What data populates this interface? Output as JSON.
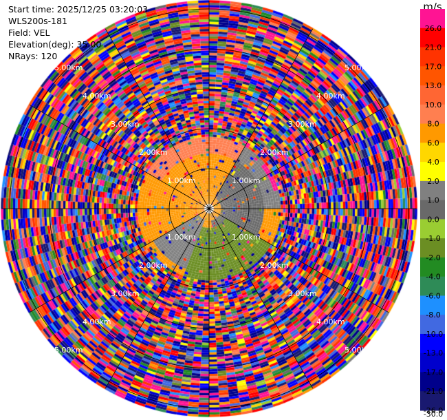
{
  "header": {
    "start_time": "Start time: 2025/12/25 03:20:03",
    "instrument": "WLS200s-181",
    "field": "Field: VEL",
    "elevation": "Elevation(deg): 35.00",
    "nrays": "NRays: 120"
  },
  "colorbar": {
    "unit": "m/s",
    "ticks": [
      "26.0",
      "21.0",
      "17.0",
      "13.0",
      "10.0",
      "8.0",
      "6.0",
      "4.0",
      "2.0",
      "1.0",
      "0.0",
      "-1.0",
      "-2.0",
      "-4.0",
      "-6.0",
      "-8.0",
      "-10.0",
      "-13.0",
      "-17.0",
      "-21.0",
      "-26.0",
      "-30.0"
    ],
    "colors": [
      "#ff1493",
      "#ff0000",
      "#ff3300",
      "#ff5500",
      "#ff6633",
      "#ff7f50",
      "#ff9900",
      "#ffd700",
      "#ffff00",
      "#808080",
      "#696969",
      "#9acd32",
      "#6b8e23",
      "#228b22",
      "#2e8b57",
      "#1e90ff",
      "#4169e1",
      "#0000ff",
      "#0000cd",
      "#00008b",
      "#191970"
    ]
  },
  "chart_data": {
    "type": "heatmap",
    "projection": "polar-ppi",
    "field": "VEL",
    "unit": "m/s",
    "nrays": 120,
    "range_rings_km": [
      1.0,
      2.0,
      3.0,
      4.0,
      5.0
    ],
    "range_ring_labels": [
      "1.00km",
      "2.00km",
      "3.00km",
      "4.00km",
      "5.00km"
    ],
    "max_range_km": 5.2,
    "regions": [
      {
        "az_range": [
          300,
          60
        ],
        "range_km": [
          0.2,
          1.4
        ],
        "value": 4.0
      },
      {
        "az_range": [
          300,
          60
        ],
        "range_km": [
          1.4,
          1.8
        ],
        "value": 6.0
      },
      {
        "az_range": [
          30,
          90
        ],
        "range_km": [
          0.3,
          1.4
        ],
        "value": -1.0
      },
      {
        "az_range": [
          30,
          90
        ],
        "range_km": [
          1.4,
          1.8
        ],
        "value": 0.0
      },
      {
        "az_range": [
          90,
          170
        ],
        "range_km": [
          0.3,
          1.4
        ],
        "value": -1.0
      },
      {
        "az_range": [
          120,
          200
        ],
        "range_km": [
          0.5,
          1.8
        ],
        "value": -4.0
      },
      {
        "az_range": [
          200,
          300
        ],
        "range_km": [
          0.3,
          1.6
        ],
        "value": 0.0
      },
      {
        "az_range": [
          240,
          300
        ],
        "range_km": [
          0.2,
          1.6
        ],
        "value": 4.0
      },
      {
        "az_range": [
          50,
          75
        ],
        "range_km": [
          1.7,
          2.4
        ],
        "value": 26.0
      }
    ],
    "noise_beyond_km": 1.8,
    "value_range": [
      -30.0,
      26.0
    ]
  }
}
